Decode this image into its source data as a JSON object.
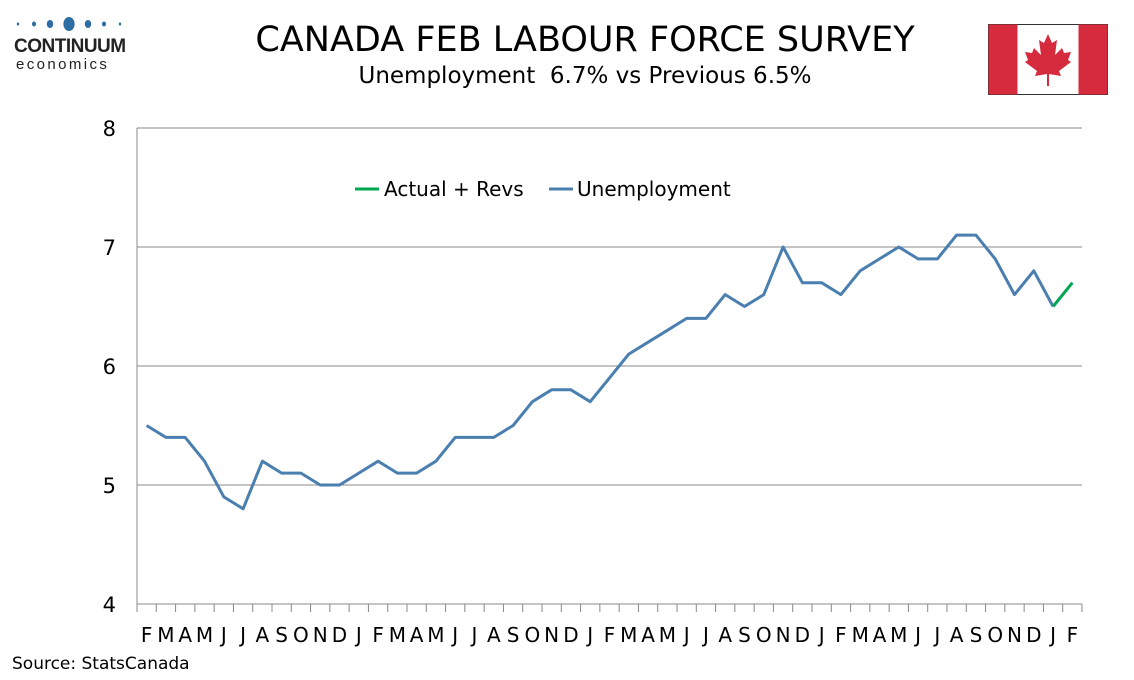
{
  "header": {
    "title": "CANADA FEB LABOUR FORCE SURVEY",
    "subtitle": "Unemployment  6.7% vs Previous 6.5%"
  },
  "logo": {
    "word": "CONTINUUM",
    "sub": "economics",
    "color": "#2e6da4"
  },
  "flag": {
    "country": "Canada",
    "red": "#d52b3c"
  },
  "source": "Source: StatsCanada",
  "chart_data": {
    "type": "line",
    "title": "",
    "xlabel": "",
    "ylabel": "",
    "ylim": [
      4,
      8
    ],
    "yticks": [
      "4",
      "5",
      "6",
      "7",
      "8"
    ],
    "grid": true,
    "legend_position": "top-center",
    "categories": [
      "F",
      "M",
      "A",
      "M",
      "J",
      "J",
      "A",
      "S",
      "O",
      "N",
      "D",
      "J",
      "F",
      "M",
      "A",
      "M",
      "J",
      "J",
      "A",
      "S",
      "O",
      "N",
      "D",
      "J",
      "F",
      "M",
      "A",
      "M",
      "J",
      "J",
      "A",
      "S",
      "O",
      "N",
      "D",
      "J",
      "F",
      "M",
      "A",
      "M",
      "J",
      "J",
      "A",
      "S",
      "O",
      "N",
      "D",
      "J",
      "F"
    ],
    "series": [
      {
        "name": "Actual + Revs",
        "color": "#00a651",
        "values": [
          null,
          null,
          null,
          null,
          null,
          null,
          null,
          null,
          null,
          null,
          null,
          null,
          null,
          null,
          null,
          null,
          null,
          null,
          null,
          null,
          null,
          null,
          null,
          null,
          null,
          null,
          null,
          null,
          null,
          null,
          null,
          null,
          null,
          null,
          null,
          null,
          null,
          null,
          null,
          null,
          null,
          null,
          null,
          null,
          null,
          null,
          null,
          6.5,
          6.7
        ]
      },
      {
        "name": "Unemployment",
        "color": "#4a7fb0",
        "values": [
          5.5,
          5.4,
          5.4,
          5.2,
          4.9,
          4.8,
          5.2,
          5.1,
          5.1,
          5.0,
          5.0,
          5.1,
          5.2,
          5.1,
          5.1,
          5.2,
          5.4,
          5.4,
          5.4,
          5.5,
          5.7,
          5.8,
          5.8,
          5.7,
          5.9,
          6.1,
          6.2,
          6.3,
          6.4,
          6.4,
          6.6,
          6.5,
          6.6,
          7.0,
          6.7,
          6.7,
          6.6,
          6.8,
          6.9,
          7.0,
          6.9,
          6.9,
          7.1,
          7.1,
          6.9,
          6.6,
          6.8,
          6.5,
          null
        ]
      }
    ]
  }
}
